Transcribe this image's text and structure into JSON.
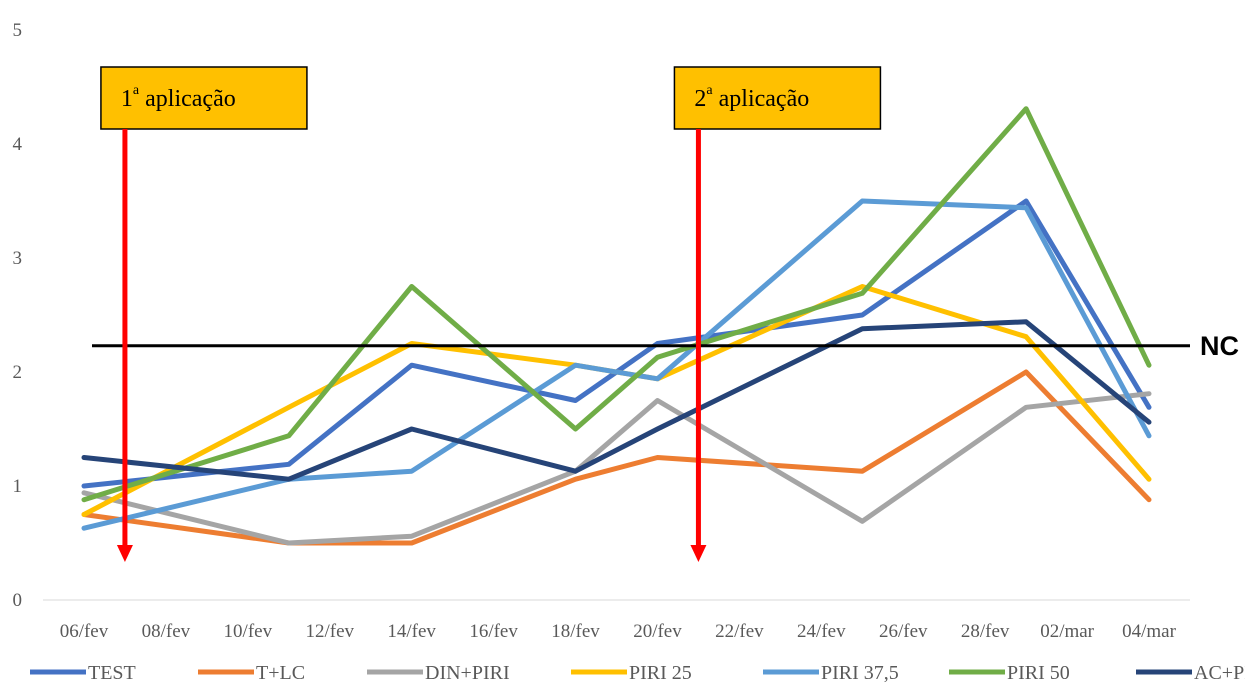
{
  "chart_data": {
    "type": "line",
    "title": "",
    "xlabel": "",
    "ylabel": "",
    "ylim": [
      0,
      5
    ],
    "yticks": [
      0,
      1,
      2,
      3,
      4,
      5
    ],
    "grid": false,
    "legend_position": "bottom",
    "x_ticks": [
      "06/fev",
      "08/fev",
      "10/fev",
      "12/fev",
      "14/fev",
      "16/fev",
      "18/fev",
      "20/fev",
      "22/fev",
      "24/fev",
      "26/fev",
      "28/fev",
      "02/mar",
      "04/mar"
    ],
    "x": [
      "06/fev",
      "11/fev",
      "14/fev",
      "18/fev",
      "20/fev",
      "25/fev",
      "01/mar",
      "04/mar"
    ],
    "series": [
      {
        "name": "TEST",
        "color": "#4472C4",
        "values": [
          1.0,
          1.19,
          2.06,
          1.75,
          2.25,
          2.5,
          3.5,
          1.69
        ]
      },
      {
        "name": "T+LC",
        "color": "#ED7D31",
        "values": [
          0.75,
          0.5,
          0.5,
          1.06,
          1.25,
          1.13,
          2.0,
          0.88
        ]
      },
      {
        "name": "DIN+PIRI",
        "color": "#A5A5A5",
        "values": [
          0.94,
          0.5,
          0.56,
          1.13,
          1.75,
          0.69,
          1.69,
          1.81
        ]
      },
      {
        "name": "PIRI 25",
        "color": "#FFC000",
        "values": [
          0.75,
          1.69,
          2.25,
          2.06,
          1.94,
          2.75,
          2.31,
          1.06
        ]
      },
      {
        "name": "PIRI 37,5",
        "color": "#5B9BD5",
        "values": [
          0.63,
          1.06,
          1.13,
          2.06,
          1.94,
          3.5,
          3.44,
          1.44
        ]
      },
      {
        "name": "PIRI 50",
        "color": "#70AD47",
        "values": [
          0.88,
          1.44,
          2.75,
          1.5,
          2.13,
          2.69,
          4.31,
          2.06
        ]
      },
      {
        "name": "AC+PIRI",
        "color": "#264478",
        "values": [
          1.25,
          1.06,
          1.5,
          1.13,
          1.5,
          2.38,
          2.44,
          1.56
        ]
      }
    ],
    "threshold": {
      "label": "NC",
      "value": 2.23,
      "color": "#000000"
    },
    "annotations": [
      {
        "label_base": "1",
        "label_sup": "a",
        "label_rest": " aplicação",
        "date": "07/fev",
        "box_color": "#FFC000",
        "arrow_color": "#FF0000"
      },
      {
        "label_base": "2",
        "label_sup": "a",
        "label_rest": " aplicação",
        "date": "21/fev",
        "box_color": "#FFC000",
        "arrow_color": "#FF0000"
      }
    ]
  }
}
